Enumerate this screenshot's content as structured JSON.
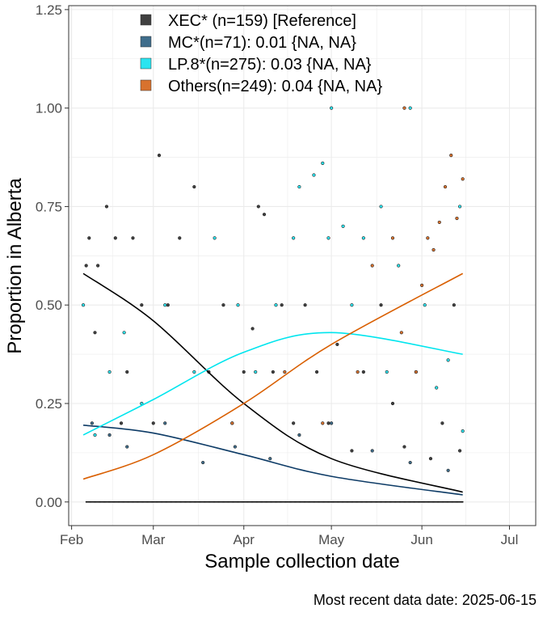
{
  "chart_data": {
    "type": "scatter",
    "xlabel": "Sample collection date",
    "ylabel": "Proportion in Alberta",
    "caption": "Most recent data date: 2025-06-15",
    "x_range": [
      "2025-01-31",
      "2025-07-10"
    ],
    "ylim": [
      -0.06,
      1.26
    ],
    "grid": true,
    "legend_placement": "top-center",
    "x_ticks": [
      {
        "date": "2025-02-01",
        "label": "Feb"
      },
      {
        "date": "2025-03-01",
        "label": "Mar"
      },
      {
        "date": "2025-04-01",
        "label": "Apr"
      },
      {
        "date": "2025-05-01",
        "label": "May"
      },
      {
        "date": "2025-06-01",
        "label": "Jun"
      },
      {
        "date": "2025-07-01",
        "label": "Jul"
      }
    ],
    "y_ticks": [
      {
        "value": 0,
        "label": "0.00"
      },
      {
        "value": 0.25,
        "label": "0.25"
      },
      {
        "value": 0.5,
        "label": "0.50"
      },
      {
        "value": 0.75,
        "label": "0.75"
      },
      {
        "value": 1,
        "label": "1.00"
      },
      {
        "value": 1.25,
        "label": "1.25"
      }
    ],
    "series": [
      {
        "name": "XEC* (n=159)  [Reference]",
        "color": "#000000",
        "legend_color": "#404040",
        "curve": [
          {
            "x": "2025-02-05",
            "y": 0.58
          },
          {
            "x": "2025-03-01",
            "y": 0.46
          },
          {
            "x": "2025-04-01",
            "y": 0.25
          },
          {
            "x": "2025-05-01",
            "y": 0.11
          },
          {
            "x": "2025-06-15",
            "y": 0.025
          }
        ],
        "points": [
          {
            "x": "2025-02-06",
            "y": 0.6
          },
          {
            "x": "2025-02-07",
            "y": 0.67
          },
          {
            "x": "2025-02-09",
            "y": 0.43
          },
          {
            "x": "2025-02-10",
            "y": 0.6
          },
          {
            "x": "2025-02-13",
            "y": 0.75
          },
          {
            "x": "2025-02-16",
            "y": 0.67
          },
          {
            "x": "2025-02-18",
            "y": 0.2
          },
          {
            "x": "2025-02-20",
            "y": 0.33
          },
          {
            "x": "2025-02-22",
            "y": 0.67
          },
          {
            "x": "2025-02-25",
            "y": 0.5
          },
          {
            "x": "2025-03-01",
            "y": 0.2
          },
          {
            "x": "2025-03-03",
            "y": 0.88
          },
          {
            "x": "2025-03-06",
            "y": 0.5
          },
          {
            "x": "2025-03-10",
            "y": 0.67
          },
          {
            "x": "2025-03-15",
            "y": 0.8
          },
          {
            "x": "2025-03-20",
            "y": 0.33
          },
          {
            "x": "2025-03-25",
            "y": 0.5
          },
          {
            "x": "2025-03-28",
            "y": 0.2
          },
          {
            "x": "2025-04-01",
            "y": 0.33
          },
          {
            "x": "2025-04-04",
            "y": 0.44
          },
          {
            "x": "2025-04-06",
            "y": 0.75
          },
          {
            "x": "2025-04-08",
            "y": 0.73
          },
          {
            "x": "2025-04-11",
            "y": 0.33
          },
          {
            "x": "2025-04-14",
            "y": 0.5
          },
          {
            "x": "2025-04-18",
            "y": 0.2
          },
          {
            "x": "2025-04-22",
            "y": 0.5
          },
          {
            "x": "2025-04-26",
            "y": 0.33
          },
          {
            "x": "2025-04-30",
            "y": 0.2
          },
          {
            "x": "2025-05-03",
            "y": 0.4
          },
          {
            "x": "2025-05-08",
            "y": 0.13
          },
          {
            "x": "2025-05-12",
            "y": 0.33
          },
          {
            "x": "2025-05-18",
            "y": 0.5
          },
          {
            "x": "2025-05-22",
            "y": 0.25
          },
          {
            "x": "2025-05-26",
            "y": 0.14
          },
          {
            "x": "2025-05-30",
            "y": 0.33
          },
          {
            "x": "2025-06-04",
            "y": 0.11
          },
          {
            "x": "2025-06-08",
            "y": 0.2
          },
          {
            "x": "2025-06-12",
            "y": 0.5
          },
          {
            "x": "2025-06-14",
            "y": 0.13
          }
        ]
      },
      {
        "name": "MC*(n=71): 0.01 {NA, NA}",
        "color": "#0d3b66",
        "legend_color": "#3f6d8b",
        "curve": [
          {
            "x": "2025-02-05",
            "y": 0.195
          },
          {
            "x": "2025-03-01",
            "y": 0.175
          },
          {
            "x": "2025-04-01",
            "y": 0.12
          },
          {
            "x": "2025-05-01",
            "y": 0.065
          },
          {
            "x": "2025-06-15",
            "y": 0.018
          }
        ],
        "points": [
          {
            "x": "2025-02-08",
            "y": 0.2
          },
          {
            "x": "2025-02-14",
            "y": 0.17
          },
          {
            "x": "2025-02-20",
            "y": 0.14
          },
          {
            "x": "2025-03-05",
            "y": 0.2
          },
          {
            "x": "2025-03-18",
            "y": 0.1
          },
          {
            "x": "2025-03-29",
            "y": 0.14
          },
          {
            "x": "2025-04-10",
            "y": 0.11
          },
          {
            "x": "2025-04-20",
            "y": 0.17
          },
          {
            "x": "2025-05-01",
            "y": 0.2
          },
          {
            "x": "2025-05-15",
            "y": 0.13
          },
          {
            "x": "2025-05-28",
            "y": 0.1
          },
          {
            "x": "2025-06-10",
            "y": 0.08
          }
        ]
      },
      {
        "name": "LP.8*(n=275): 0.03 {NA, NA}",
        "color": "#00e5ee",
        "legend_color": "#2be4f0",
        "curve": [
          {
            "x": "2025-02-05",
            "y": 0.17
          },
          {
            "x": "2025-03-01",
            "y": 0.26
          },
          {
            "x": "2025-04-01",
            "y": 0.38
          },
          {
            "x": "2025-05-01",
            "y": 0.43
          },
          {
            "x": "2025-06-15",
            "y": 0.375
          }
        ],
        "points": [
          {
            "x": "2025-02-05",
            "y": 0.5
          },
          {
            "x": "2025-02-09",
            "y": 0.17
          },
          {
            "x": "2025-02-14",
            "y": 0.33
          },
          {
            "x": "2025-02-19",
            "y": 0.43
          },
          {
            "x": "2025-02-25",
            "y": 0.25
          },
          {
            "x": "2025-03-05",
            "y": 0.5
          },
          {
            "x": "2025-03-15",
            "y": 0.33
          },
          {
            "x": "2025-03-22",
            "y": 0.67
          },
          {
            "x": "2025-03-30",
            "y": 0.5
          },
          {
            "x": "2025-04-05",
            "y": 0.33
          },
          {
            "x": "2025-04-12",
            "y": 0.5
          },
          {
            "x": "2025-04-18",
            "y": 0.67
          },
          {
            "x": "2025-04-20",
            "y": 0.8
          },
          {
            "x": "2025-04-25",
            "y": 0.83
          },
          {
            "x": "2025-04-28",
            "y": 0.86
          },
          {
            "x": "2025-04-30",
            "y": 0.67
          },
          {
            "x": "2025-05-01",
            "y": 1.0
          },
          {
            "x": "2025-05-05",
            "y": 0.7
          },
          {
            "x": "2025-05-08",
            "y": 0.5
          },
          {
            "x": "2025-05-12",
            "y": 0.67
          },
          {
            "x": "2025-05-18",
            "y": 0.75
          },
          {
            "x": "2025-05-20",
            "y": 0.33
          },
          {
            "x": "2025-05-24",
            "y": 0.6
          },
          {
            "x": "2025-05-28",
            "y": 1.0
          },
          {
            "x": "2025-06-02",
            "y": 0.5
          },
          {
            "x": "2025-06-06",
            "y": 0.29
          },
          {
            "x": "2025-06-10",
            "y": 0.36
          },
          {
            "x": "2025-06-14",
            "y": 0.75
          },
          {
            "x": "2025-06-15",
            "y": 0.18
          }
        ]
      },
      {
        "name": "Others(n=249): 0.04 {NA, NA}",
        "color": "#d95f02",
        "legend_color": "#d8722e",
        "curve": [
          {
            "x": "2025-02-05",
            "y": 0.058
          },
          {
            "x": "2025-03-01",
            "y": 0.12
          },
          {
            "x": "2025-04-01",
            "y": 0.25
          },
          {
            "x": "2025-05-01",
            "y": 0.4
          },
          {
            "x": "2025-06-15",
            "y": 0.58
          }
        ],
        "points": [
          {
            "x": "2025-03-28",
            "y": 0.2
          },
          {
            "x": "2025-04-15",
            "y": 0.33
          },
          {
            "x": "2025-04-28",
            "y": 0.2
          },
          {
            "x": "2025-05-10",
            "y": 0.33
          },
          {
            "x": "2025-05-15",
            "y": 0.6
          },
          {
            "x": "2025-05-22",
            "y": 0.67
          },
          {
            "x": "2025-05-25",
            "y": 0.43
          },
          {
            "x": "2025-05-30",
            "y": 0.33
          },
          {
            "x": "2025-06-01",
            "y": 0.55
          },
          {
            "x": "2025-06-03",
            "y": 0.67
          },
          {
            "x": "2025-06-05",
            "y": 0.64
          },
          {
            "x": "2025-06-07",
            "y": 0.71
          },
          {
            "x": "2025-06-09",
            "y": 0.8
          },
          {
            "x": "2025-06-11",
            "y": 0.88
          },
          {
            "x": "2025-06-13",
            "y": 0.72
          },
          {
            "x": "2025-06-15",
            "y": 0.82
          },
          {
            "x": "2025-05-26",
            "y": 1.0
          }
        ]
      }
    ]
  }
}
